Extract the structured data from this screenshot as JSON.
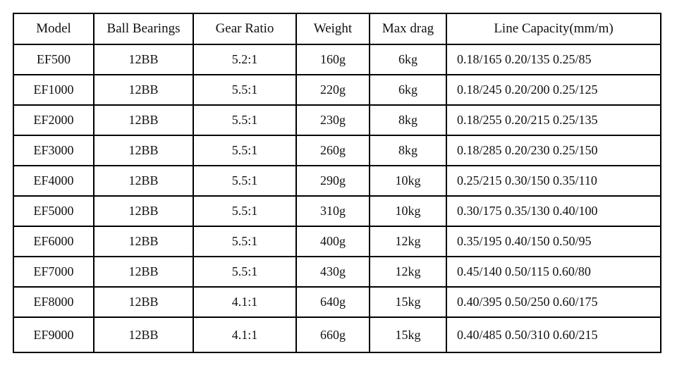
{
  "page": {
    "background": "#ffffff"
  },
  "table": {
    "border_color": "#000000",
    "text_color": "#111111",
    "columns": [
      "Model",
      "Ball Bearings",
      "Gear Ratio",
      "Weight",
      "Max drag",
      "Line Capacity(mm/m)"
    ],
    "rows": [
      [
        "EF500",
        "12BB",
        "5.2:1",
        "160g",
        "6kg",
        "0.18/165 0.20/135 0.25/85"
      ],
      [
        "EF1000",
        "12BB",
        "5.5:1",
        "220g",
        "6kg",
        "0.18/245 0.20/200 0.25/125"
      ],
      [
        "EF2000",
        "12BB",
        "5.5:1",
        "230g",
        "8kg",
        "0.18/255 0.20/215 0.25/135"
      ],
      [
        "EF3000",
        "12BB",
        "5.5:1",
        "260g",
        "8kg",
        "0.18/285 0.20/230 0.25/150"
      ],
      [
        "EF4000",
        "12BB",
        "5.5:1",
        "290g",
        "10kg",
        "0.25/215 0.30/150 0.35/110"
      ],
      [
        "EF5000",
        "12BB",
        "5.5:1",
        "310g",
        "10kg",
        "0.30/175 0.35/130 0.40/100"
      ],
      [
        "EF6000",
        "12BB",
        "5.5:1",
        "400g",
        "12kg",
        "0.35/195 0.40/150 0.50/95"
      ],
      [
        "EF7000",
        "12BB",
        "5.5:1",
        "430g",
        "12kg",
        "0.45/140 0.50/115 0.60/80"
      ],
      [
        "EF8000",
        "12BB",
        "4.1:1",
        "640g",
        "15kg",
        "0.40/395 0.50/250 0.60/175"
      ],
      [
        "EF9000",
        "12BB",
        "4.1:1",
        "660g",
        "15kg",
        "0.40/485 0.50/310 0.60/215"
      ]
    ]
  },
  "chart_data": {
    "type": "table",
    "title": "",
    "columns": [
      "Model",
      "Ball Bearings",
      "Gear Ratio",
      "Weight",
      "Max drag",
      "Line Capacity(mm/m)"
    ],
    "rows": [
      [
        "EF500",
        "12BB",
        "5.2:1",
        "160g",
        "6kg",
        "0.18/165 0.20/135 0.25/85"
      ],
      [
        "EF1000",
        "12BB",
        "5.5:1",
        "220g",
        "6kg",
        "0.18/245 0.20/200 0.25/125"
      ],
      [
        "EF2000",
        "12BB",
        "5.5:1",
        "230g",
        "8kg",
        "0.18/255 0.20/215 0.25/135"
      ],
      [
        "EF3000",
        "12BB",
        "5.5:1",
        "260g",
        "8kg",
        "0.18/285 0.20/230 0.25/150"
      ],
      [
        "EF4000",
        "12BB",
        "5.5:1",
        "290g",
        "10kg",
        "0.25/215 0.30/150 0.35/110"
      ],
      [
        "EF5000",
        "12BB",
        "5.5:1",
        "310g",
        "10kg",
        "0.30/175 0.35/130 0.40/100"
      ],
      [
        "EF6000",
        "12BB",
        "5.5:1",
        "400g",
        "12kg",
        "0.35/195 0.40/150 0.50/95"
      ],
      [
        "EF7000",
        "12BB",
        "5.5:1",
        "430g",
        "12kg",
        "0.45/140 0.50/115 0.60/80"
      ],
      [
        "EF8000",
        "12BB",
        "4.1:1",
        "640g",
        "15kg",
        "0.40/395 0.50/250 0.60/175"
      ],
      [
        "EF9000",
        "12BB",
        "4.1:1",
        "660g",
        "15kg",
        "0.40/485 0.50/310 0.60/215"
      ]
    ]
  }
}
